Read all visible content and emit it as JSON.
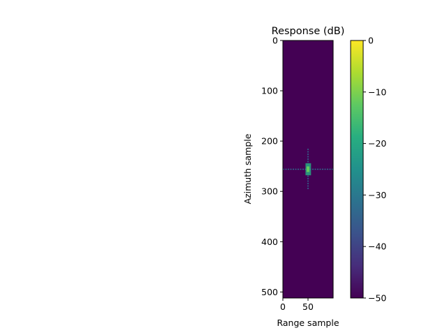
{
  "chart_data": {
    "type": "heatmap",
    "title": "Response (dB)",
    "xlabel": "Range sample",
    "ylabel": "Azimuth sample",
    "x_range": [
      0,
      100
    ],
    "y_range": [
      0,
      512
    ],
    "y_inverted": true,
    "x_ticks": [
      0,
      50
    ],
    "y_ticks": [
      0,
      100,
      200,
      300,
      400,
      500
    ],
    "colormap": "viridis",
    "colorbar": {
      "range": [
        -50,
        0
      ],
      "ticks": [
        0,
        -10,
        -20,
        -30,
        -40,
        -50
      ],
      "tick_labels": [
        "0",
        "−10",
        "−20",
        "−30",
        "−40",
        "−50"
      ]
    },
    "background_db": -50,
    "peak": {
      "range_sample": 50,
      "azimuth_sample": 256,
      "value_db": -12
    },
    "features": [
      {
        "kind": "sidelobe-horizontal",
        "azimuth_sample": 256,
        "range_from": 0,
        "range_to": 100,
        "value_db": -32
      },
      {
        "kind": "sidelobe-vertical",
        "range_sample": 50,
        "azimuth_from": 215,
        "azimuth_to": 297,
        "value_db": -34
      },
      {
        "kind": "mainlobe",
        "range_from": 45,
        "range_to": 56,
        "azimuth_from": 244,
        "azimuth_to": 268,
        "value_db": -20
      }
    ]
  }
}
